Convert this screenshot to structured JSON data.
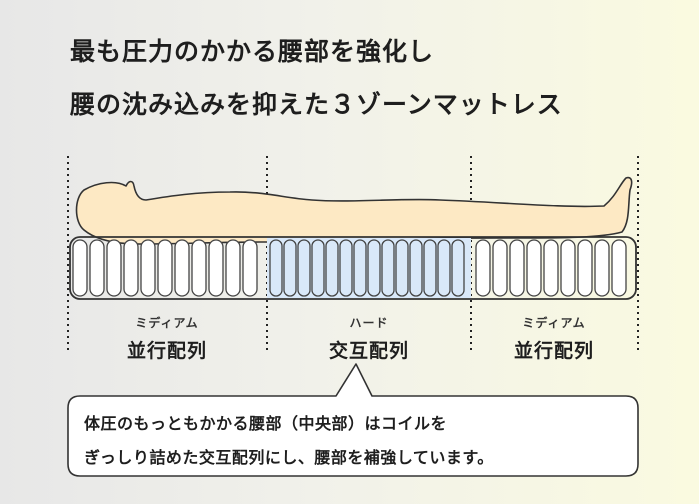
{
  "heading": {
    "line1": "最も圧力のかかる腰部を強化し",
    "line2": "腰の沈み込みを抑えた３ゾーンマットレス"
  },
  "zones": [
    {
      "sub": "ミディアム",
      "name": "並行配列"
    },
    {
      "sub": "ハード",
      "name": "交互配列"
    },
    {
      "sub": "ミディアム",
      "name": "並行配列"
    }
  ],
  "callout": {
    "line1": "体圧のもっともかかる腰部（中央部）はコイルを",
    "line2": "ぎっしり詰めた交互配列にし、腰部を補強しています。"
  },
  "colors": {
    "body_fill": "#fde9c4",
    "hard_zone_fill": "#d9e8f9",
    "coil_fill": "#ffffff"
  }
}
